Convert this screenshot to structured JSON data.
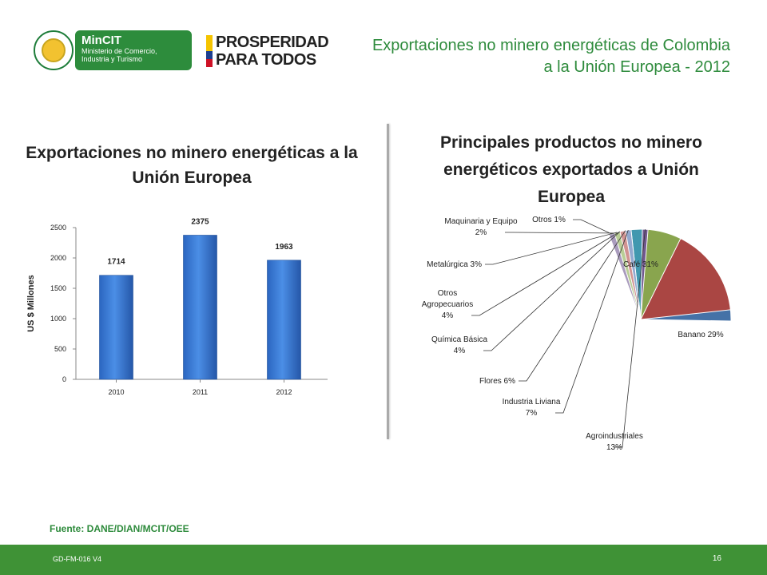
{
  "header": {
    "title": "Exportaciones no minero energéticas de Colombia a la Unión Europea - 2012",
    "logo_mincit_name": "MinCIT",
    "logo_mincit_subtitle": "Ministerio de Comercio, Industria y Turismo",
    "logo_prosperidad": "PROSPERIDAD PARA TODOS",
    "seal_icon": "colombia-seal-icon",
    "colors": {
      "title": "#2e8b3c",
      "brand_green": "#2d8c3c",
      "footer": "#3f9236"
    }
  },
  "chart_data": [
    {
      "type": "bar",
      "title": "Exportaciones no minero energéticas a la Unión Europea",
      "categories": [
        "2010",
        "2011",
        "2012"
      ],
      "values": [
        1714,
        2375,
        1963
      ],
      "data_labels": [
        "1714",
        "2375",
        "1963"
      ],
      "ylabel": "US $ Millones",
      "ylim": [
        0,
        2500
      ],
      "yticks": [
        "0",
        "500",
        "1000",
        "1500",
        "2000",
        "2500"
      ],
      "grid": false,
      "bar_color": "#3c7ed6"
    },
    {
      "type": "pie",
      "title": "Principales productos no minero energéticos exportados a Unión Europea",
      "slices": [
        {
          "label": "Café 31%",
          "value": 31,
          "color": "#4572a7"
        },
        {
          "label": "Banano 29%",
          "value": 29,
          "color": "#aa4643"
        },
        {
          "label": "Agroindustriales 13%",
          "value": 13,
          "color": "#89a54e"
        },
        {
          "label": "Industria Liviana 7%",
          "value": 7,
          "color": "#71588f"
        },
        {
          "label": "Flores 6%",
          "value": 6,
          "color": "#4198af"
        },
        {
          "label": "Química Básica 4%",
          "value": 4,
          "color": "#db843d"
        },
        {
          "label": "Otros Agropecuarios 4%",
          "value": 4,
          "color": "#93a9cf"
        },
        {
          "label": "Metalúrgica 3%",
          "value": 3,
          "color": "#d19392"
        },
        {
          "label": "Maquinaria y Equipo 2%",
          "value": 2,
          "color": "#b9cd96"
        },
        {
          "label": "Otros 1%",
          "value": 1,
          "color": "#a99bbd"
        }
      ],
      "legend": "none"
    }
  ],
  "source": "Fuente: DANE/DIAN/MCIT/OEE",
  "footer": {
    "code": "GD-FM-016 V4",
    "page": "16"
  }
}
